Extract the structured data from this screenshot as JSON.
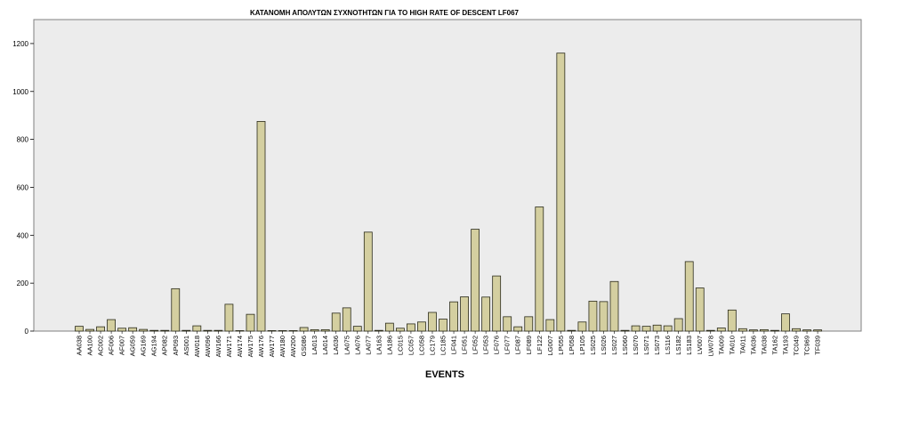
{
  "chart_data": {
    "type": "bar",
    "title": "ΚΑΤΑΝΟΜΗ ΑΠΟΛΥΤΩΝ ΣΥΧΝΟΤΗΤΩΝ ΓΙΑ ΤΟ HIGH RATE OF DESCENT LF067",
    "xlabel": "EVENTS",
    "ylabel": "",
    "ylim": [
      0,
      1300
    ],
    "yticks": [
      "0",
      "200",
      "400",
      "600",
      "800",
      "1000",
      "1200"
    ],
    "grid": false,
    "legend": "none",
    "colors": {
      "bar_fill": "#d4cfa0",
      "bar_stroke": "#2a2a1a",
      "plot_bg": "#ececec",
      "plot_border": "#808080"
    },
    "categories": [
      "AA038",
      "AA100",
      "AC002",
      "AF006",
      "AF007",
      "AG059",
      "AG169",
      "AG194",
      "AP082",
      "AP093",
      "AS001",
      "AW018",
      "AW096",
      "AW166",
      "AW171",
      "AW174",
      "AW175",
      "AW176",
      "AW177",
      "AW180",
      "AW200",
      "GS086",
      "LA013",
      "LA014",
      "LA036",
      "LA075",
      "LA076",
      "LA077",
      "LA163",
      "LA186",
      "LC015",
      "LC057",
      "LC058",
      "LC179",
      "LC185",
      "LF041",
      "LF051",
      "LF052",
      "LF053",
      "LF076",
      "LF077",
      "LF087",
      "LF089",
      "LF122",
      "LG007",
      "LP055",
      "LP058",
      "LP105",
      "LS025",
      "LS026",
      "LS027",
      "LS060",
      "LS070",
      "LS071",
      "LS073",
      "LS116",
      "LS182",
      "LS183",
      "LV007",
      "LW078",
      "TA009",
      "TA010",
      "TA011",
      "TA036",
      "TA038",
      "TA162",
      "TA193",
      "TC049",
      "TC969",
      "TF039"
    ],
    "values": [
      20,
      7,
      18,
      48,
      12,
      14,
      7,
      3,
      3,
      177,
      3,
      22,
      3,
      3,
      112,
      2,
      70,
      875,
      2,
      2,
      2,
      15,
      6,
      6,
      75,
      97,
      20,
      413,
      3,
      33,
      12,
      30,
      38,
      78,
      50,
      122,
      143,
      425,
      142,
      230,
      60,
      18,
      60,
      518,
      48,
      1160,
      3,
      38,
      125,
      123,
      207,
      3,
      22,
      20,
      25,
      22,
      52,
      290,
      180,
      3,
      13,
      88,
      10,
      5,
      6,
      3,
      72,
      10,
      5,
      5
    ]
  }
}
